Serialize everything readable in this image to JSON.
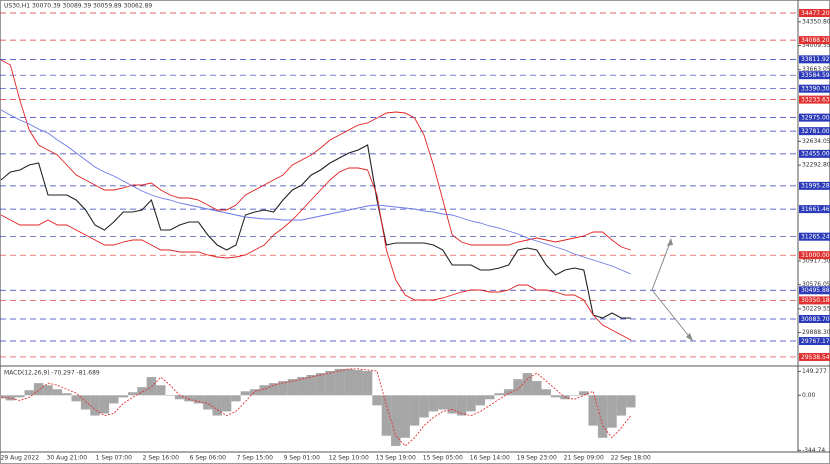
{
  "chart_data": [
    {
      "type": "line",
      "title": "US30,H1  30070.39 30089.39 30059.89 30062.89",
      "categories": [
        null,
        null,
        "29 Aug 2022",
        null,
        null,
        null,
        null,
        "30 Aug 21:00",
        null,
        null,
        null,
        null,
        "1 Sep 07:00",
        null,
        null,
        null,
        null,
        "2 Sep 16:00",
        null,
        null,
        null,
        null,
        "6 Sep 06:00",
        null,
        null,
        null,
        null,
        "7 Sep 15:00",
        null,
        null,
        null,
        null,
        "9 Sep 01:00",
        null,
        null,
        null,
        null,
        "12 Sep 10:00",
        null,
        null,
        null,
        null,
        "13 Sep 19:00",
        null,
        null,
        null,
        null,
        "15 Sep 05:00",
        null,
        null,
        null,
        null,
        "16 Sep 14:00",
        null,
        null,
        null,
        null,
        "19 Sep 23:00",
        null,
        null,
        null,
        null,
        "21 Sep 09:00",
        null,
        null,
        null,
        null,
        "22 Sep 18:00"
      ],
      "ylim": [
        29423,
        34664
      ],
      "yticks": [
        {
          "value": 34350.8,
          "label": "34350.80"
        },
        34009.55,
        33663.05,
        32634.05,
        {
          "value": 32292.8,
          "label": "32292.80"
        },
        {
          "value": 30917.3,
          "label": "30917.30"
        },
        30576.05,
        30229.55,
        {
          "value": 29888.3,
          "label": "29888.30"
        }
      ],
      "series": [
        {
          "color": "#222222",
          "values": [
            32079,
            32194,
            32223,
            32295,
            32323,
            31864,
            31864,
            31864,
            31792,
            31648,
            31433,
            31361,
            31476,
            31620,
            31620,
            31648,
            31792,
            31361,
            31361,
            31433,
            31476,
            31476,
            31290,
            31146,
            31074,
            31146,
            31577,
            31620,
            31648,
            31620,
            31792,
            31936,
            32007,
            32151,
            32223,
            32323,
            32395,
            32467,
            32510,
            32582,
            31792,
            31146,
            31175,
            31175,
            31175,
            31175,
            31146,
            31074,
            30859,
            30859,
            30859,
            30787,
            30787,
            30816,
            30859,
            31074,
            31103,
            31074,
            30859,
            30715,
            30787,
            30816,
            30787,
            30141,
            30098,
            30170,
            30098,
            30098
          ]
        },
        {
          "color": "#e02020",
          "values": [
            33802,
            33730,
            33228,
            32797,
            32582,
            32510,
            32438,
            32295,
            32151,
            32080,
            32008,
            31936,
            31936,
            31965,
            32008,
            32008,
            32036,
            31936,
            31864,
            31821,
            31821,
            31792,
            31721,
            31649,
            31649,
            31721,
            31864,
            31936,
            32008,
            32080,
            32151,
            32295,
            32367,
            32438,
            32539,
            32654,
            32726,
            32797,
            32869,
            32898,
            32970,
            33041,
            33056,
            33041,
            32970,
            32726,
            32295,
            31792,
            31290,
            31189,
            31146,
            31146,
            31146,
            31146,
            31146,
            31189,
            31218,
            31247,
            31218,
            31189,
            31218,
            31247,
            31275,
            31333,
            31333,
            31218,
            31118,
            31074
          ]
        },
        {
          "color": "#e02020",
          "values": [
            31577,
            31505,
            31433,
            31433,
            31433,
            31505,
            31433,
            31433,
            31362,
            31290,
            31218,
            31146,
            31146,
            31189,
            31218,
            31218,
            31146,
            31074,
            31074,
            31046,
            31046,
            31046,
            31003,
            30974,
            30960,
            30974,
            31003,
            31074,
            31146,
            31290,
            31390,
            31505,
            31649,
            31792,
            31936,
            32080,
            32194,
            32252,
            32252,
            32223,
            31864,
            31074,
            30644,
            30428,
            30357,
            30357,
            30357,
            30385,
            30428,
            30471,
            30500,
            30500,
            30471,
            30471,
            30500,
            30572,
            30572,
            30500,
            30500,
            30471,
            30428,
            30428,
            30357,
            30141,
            29998,
            29926,
            29854,
            29782
          ]
        },
        {
          "color": "#6a78e6",
          "values": [
            33084,
            33013,
            32941,
            32883,
            32812,
            32754,
            32654,
            32568,
            32467,
            32367,
            32266,
            32194,
            32137,
            32065,
            31993,
            31922,
            31864,
            31821,
            31792,
            31749,
            31721,
            31692,
            31663,
            31634,
            31606,
            31577,
            31548,
            31534,
            31520,
            31520,
            31505,
            31505,
            31505,
            31534,
            31563,
            31591,
            31620,
            31649,
            31677,
            31706,
            31721,
            31706,
            31692,
            31677,
            31663,
            31634,
            31620,
            31591,
            31577,
            31534,
            31491,
            31462,
            31419,
            31390,
            31347,
            31304,
            31247,
            31204,
            31161,
            31118,
            31074,
            31017,
            30974,
            30931,
            30888,
            30845,
            30787,
            30730
          ]
        }
      ],
      "levels": [
        {
          "value": 34477.2,
          "label": "34477.20",
          "color": "#e03030"
        },
        {
          "value": 34088.2,
          "label": "34088.20",
          "color": "#e03030"
        },
        {
          "value": 33811.92,
          "label": "33811.92",
          "color": "#2a3ab8"
        },
        {
          "value": 33584.59,
          "label": "33584.59",
          "color": "#2a3ab8"
        },
        {
          "value": 33390.3,
          "label": "33390.30",
          "color": "#2a3ab8"
        },
        {
          "value": 33233.63,
          "label": "33233.63",
          "color": "#e03030"
        },
        {
          "value": 32975,
          "label": "32975.00",
          "color": "#2a3ab8"
        },
        {
          "value": 32781,
          "label": "32781.00",
          "color": "#2a3ab8"
        },
        {
          "value": 32455,
          "label": "32455.00",
          "color": "#2a3ab8"
        },
        {
          "value": 31995.28,
          "label": "31995.28",
          "color": "#2a3ab8"
        },
        {
          "value": 31661.46,
          "label": "31661.46",
          "color": "#2a3ab8"
        },
        {
          "value": 31265.24,
          "label": "31265.24",
          "color": "#2a3ab8"
        },
        {
          "value": 31000,
          "label": "31000.00",
          "color": "#e03030"
        },
        {
          "value": 30495.88,
          "label": "30495.88",
          "color": "#2a3ab8"
        },
        {
          "value": 30350.18,
          "label": "30350.18",
          "color": "#e03030"
        },
        {
          "value": 30083.7,
          "label": "30083.70",
          "color": "#2a3ab8"
        },
        {
          "value": 29767.17,
          "label": "29767.17",
          "color": "#2a3ab8"
        },
        {
          "value": 29538.54,
          "label": "29538.54",
          "color": "#e03030"
        }
      ]
    },
    {
      "type": "bar",
      "title": "MACD(12,26,9) -70.297 -81.689",
      "ylim": [
        -355,
        177
      ],
      "yticks": [
        149.277,
        {
          "value": 0,
          "label": "0.00"
        },
        -344.74
      ],
      "series": [
        {
          "type": "bar",
          "color": "#a6a6a6",
          "values": [
            -19,
            -32,
            -13,
            32,
            76,
            63,
            38,
            13,
            -38,
            -89,
            -127,
            -114,
            -51,
            -13,
            19,
            51,
            114,
            63,
            0,
            -25,
            -38,
            -51,
            -89,
            -127,
            -101,
            -38,
            25,
            38,
            63,
            76,
            89,
            101,
            114,
            127,
            139,
            152,
            165,
            165,
            158,
            152,
            -63,
            -253,
            -317,
            -266,
            -190,
            -139,
            -101,
            -89,
            -114,
            -127,
            -101,
            -63,
            -25,
            13,
            38,
            101,
            139,
            89,
            38,
            -13,
            -25,
            0,
            25,
            -190,
            -266,
            -203,
            -127,
            -76
          ]
        },
        {
          "type": "line",
          "color": "#e03030",
          "values": [
            -10,
            -19,
            -32,
            -13,
            32,
            76,
            63,
            38,
            13,
            -38,
            -89,
            -127,
            -114,
            -51,
            -13,
            19,
            51,
            114,
            63,
            0,
            -25,
            -38,
            -51,
            -89,
            -127,
            -101,
            -38,
            25,
            38,
            63,
            76,
            89,
            101,
            114,
            127,
            139,
            152,
            165,
            165,
            158,
            152,
            -63,
            -253,
            -317,
            -266,
            -190,
            -139,
            -101,
            -89,
            -114,
            -127,
            -101,
            -63,
            -25,
            13,
            38,
            101,
            139,
            89,
            38,
            -13,
            -25,
            0,
            25,
            -190,
            -266,
            -203,
            -127
          ]
        }
      ]
    }
  ]
}
